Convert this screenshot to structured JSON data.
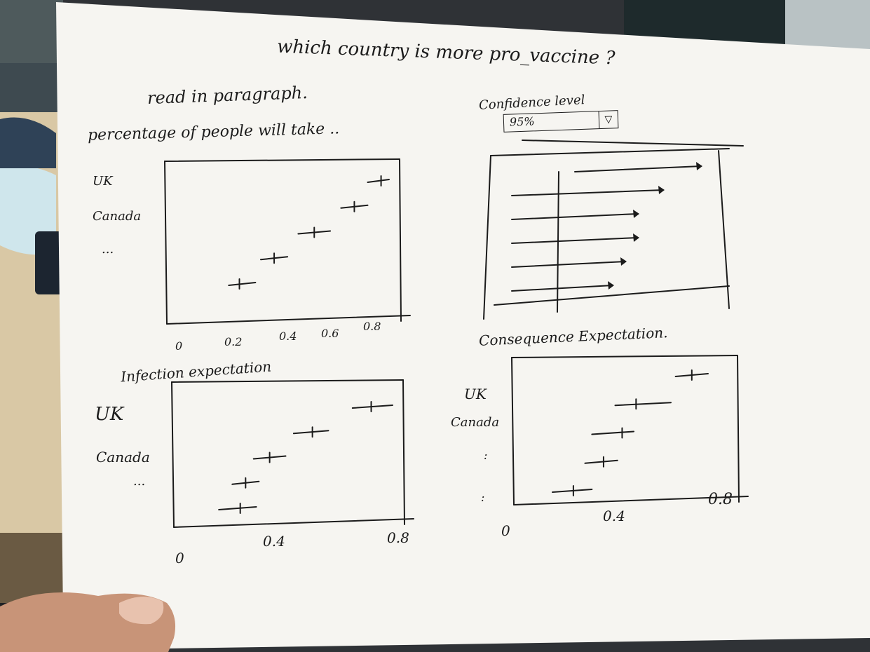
{
  "title": "which country is more pro_vaccine ?",
  "subtitle": "read in paragraph.",
  "colors": {
    "ink": "#1b1b1b",
    "paper": "#f6f5f1",
    "desk": "#d9c8a5"
  },
  "confidence": {
    "label": "Confidence level",
    "value": "95%",
    "dropdown_icon": "triangle-down-icon"
  },
  "chart_data": [
    {
      "type": "scatter",
      "title": "percentage of people will take ..",
      "categories": [
        "UK",
        "Canada",
        "..."
      ],
      "x_ticks": [
        "0",
        "0.2",
        "0.4",
        "0.6",
        "0.8"
      ],
      "xlim": [
        0,
        0.8
      ],
      "points": [
        {
          "x": 0.77,
          "lo": 0.72,
          "hi": 0.8
        },
        {
          "x": 0.67,
          "lo": 0.62,
          "hi": 0.72
        },
        {
          "x": 0.52,
          "lo": 0.46,
          "hi": 0.58
        },
        {
          "x": 0.37,
          "lo": 0.32,
          "hi": 0.42
        },
        {
          "x": 0.24,
          "lo": 0.2,
          "hi": 0.3
        }
      ]
    },
    {
      "type": "bar",
      "title": "Confidence level",
      "values": [
        0.75,
        0.6,
        0.5,
        0.5,
        0.45,
        0.4
      ]
    },
    {
      "type": "scatter",
      "title": "Infection expectation",
      "categories": [
        "UK",
        "Canada",
        "..."
      ],
      "x_ticks": [
        "0",
        "0.4",
        "0.8"
      ],
      "xlim": [
        0,
        0.8
      ],
      "points": [
        {
          "x": 0.72,
          "lo": 0.65,
          "hi": 0.8
        },
        {
          "x": 0.5,
          "lo": 0.43,
          "hi": 0.56
        },
        {
          "x": 0.34,
          "lo": 0.28,
          "hi": 0.4
        },
        {
          "x": 0.25,
          "lo": 0.2,
          "hi": 0.3
        },
        {
          "x": 0.23,
          "lo": 0.15,
          "hi": 0.29
        }
      ]
    },
    {
      "type": "scatter",
      "title": "Consequence Expectation.",
      "categories": [
        "UK",
        "Canada",
        ":",
        ":"
      ],
      "x_ticks": [
        "0",
        "0.4",
        "0.8"
      ],
      "xlim": [
        0,
        0.8
      ],
      "points": [
        {
          "x": 0.73,
          "lo": 0.66,
          "hi": 0.8
        },
        {
          "x": 0.49,
          "lo": 0.4,
          "hi": 0.64
        },
        {
          "x": 0.43,
          "lo": 0.3,
          "hi": 0.48
        },
        {
          "x": 0.35,
          "lo": 0.27,
          "hi": 0.41
        },
        {
          "x": 0.22,
          "lo": 0.13,
          "hi": 0.3
        }
      ]
    }
  ]
}
